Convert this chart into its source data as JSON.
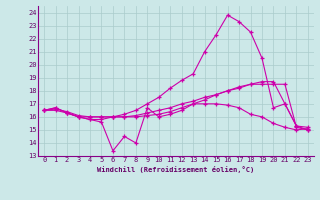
{
  "bg_color": "#cce8e8",
  "grid_color": "#aacccc",
  "line_color": "#cc00aa",
  "xlabel": "Windchill (Refroidissement éolien,°C)",
  "ylim": [
    13,
    24.5
  ],
  "xlim": [
    -0.5,
    23.5
  ],
  "yticks": [
    13,
    14,
    15,
    16,
    17,
    18,
    19,
    20,
    21,
    22,
    23,
    24
  ],
  "xticks": [
    0,
    1,
    2,
    3,
    4,
    5,
    6,
    7,
    8,
    9,
    10,
    11,
    12,
    13,
    14,
    15,
    16,
    17,
    18,
    19,
    20,
    21,
    22,
    23
  ],
  "line1_x": [
    0,
    1,
    2,
    3,
    4,
    5,
    6,
    7,
    8,
    9,
    10,
    11,
    12,
    13,
    14,
    15,
    16,
    17,
    18,
    19,
    20,
    21,
    22,
    23
  ],
  "line1_y": [
    16.5,
    16.7,
    16.3,
    16.0,
    15.8,
    15.6,
    13.4,
    14.5,
    14.0,
    16.7,
    16.0,
    16.2,
    16.5,
    17.0,
    17.0,
    17.0,
    16.9,
    16.7,
    16.2,
    16.0,
    15.5,
    15.2,
    15.0,
    15.1
  ],
  "line2_x": [
    0,
    1,
    2,
    3,
    4,
    5,
    6,
    7,
    8,
    9,
    10,
    11,
    12,
    13,
    14,
    15,
    16,
    17,
    18,
    19,
    20,
    21,
    22,
    23
  ],
  "line2_y": [
    16.5,
    16.5,
    16.3,
    16.0,
    16.0,
    16.0,
    16.0,
    16.0,
    16.1,
    16.3,
    16.5,
    16.7,
    17.0,
    17.2,
    17.5,
    17.7,
    18.0,
    18.3,
    18.5,
    18.7,
    18.7,
    17.0,
    15.3,
    15.0
  ],
  "line3_x": [
    0,
    1,
    2,
    3,
    4,
    5,
    6,
    7,
    8,
    9,
    10,
    11,
    12,
    13,
    14,
    15,
    16,
    17,
    18,
    19,
    20,
    21,
    22,
    23
  ],
  "line3_y": [
    16.5,
    16.7,
    16.3,
    16.0,
    15.8,
    15.8,
    16.0,
    16.2,
    16.5,
    17.0,
    17.5,
    18.2,
    18.8,
    19.3,
    21.0,
    22.3,
    23.8,
    23.3,
    22.5,
    20.5,
    16.7,
    17.0,
    15.3,
    15.2
  ],
  "line4_x": [
    0,
    1,
    2,
    3,
    4,
    5,
    6,
    7,
    8,
    9,
    10,
    11,
    12,
    13,
    14,
    15,
    16,
    17,
    18,
    19,
    20,
    21,
    22,
    23
  ],
  "line4_y": [
    16.5,
    16.6,
    16.4,
    16.1,
    16.0,
    16.0,
    16.0,
    16.0,
    16.0,
    16.1,
    16.2,
    16.4,
    16.7,
    17.0,
    17.3,
    17.7,
    18.0,
    18.2,
    18.5,
    18.5,
    18.5,
    18.5,
    15.2,
    15.0
  ]
}
